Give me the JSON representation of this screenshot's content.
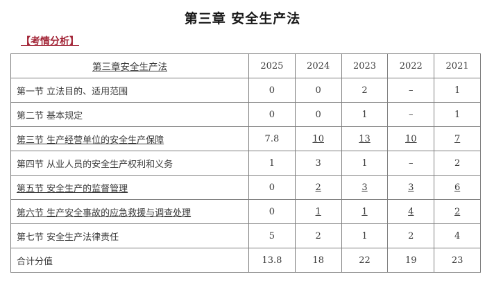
{
  "page": {
    "title": "第三章 安全生产法",
    "analysis_label": "【考情分析】"
  },
  "colors": {
    "accent_red": "#a32638",
    "text": "#3a3a3a",
    "table_border": "#7f7f7f",
    "background": "#ffffff"
  },
  "table": {
    "header": {
      "chapter": "第三章安全生产法",
      "years": [
        "2025",
        "2024",
        "2023",
        "2022",
        "2021"
      ]
    },
    "rows": [
      {
        "label": "第一节 立法目的、适用范围",
        "values": [
          "0",
          "0",
          "2",
          "–",
          "1"
        ]
      },
      {
        "label": "第二节 基本规定",
        "values": [
          "0",
          "0",
          "1",
          "–",
          "1"
        ]
      },
      {
        "label": "第三节 生产经营单位的安全生产保障",
        "values": [
          "7.8",
          "10",
          "13",
          "10",
          "7"
        ]
      },
      {
        "label": "第四节 从业人员的安全生产权利和义务",
        "values": [
          "1",
          "3",
          "1",
          "–",
          "2"
        ]
      },
      {
        "label": "第五节 安全生产的监督管理",
        "values": [
          "0",
          "2",
          "3",
          "3",
          "6"
        ]
      },
      {
        "label": "第六节 生产安全事故的应急救援与调查处理",
        "values": [
          "0",
          "1",
          "1",
          "4",
          "2"
        ]
      },
      {
        "label": "第七节 安全生产法律责任",
        "values": [
          "5",
          "2",
          "1",
          "2",
          "4"
        ]
      },
      {
        "label": "合计分值",
        "values": [
          "13.8",
          "18",
          "22",
          "19",
          "23"
        ]
      }
    ]
  }
}
